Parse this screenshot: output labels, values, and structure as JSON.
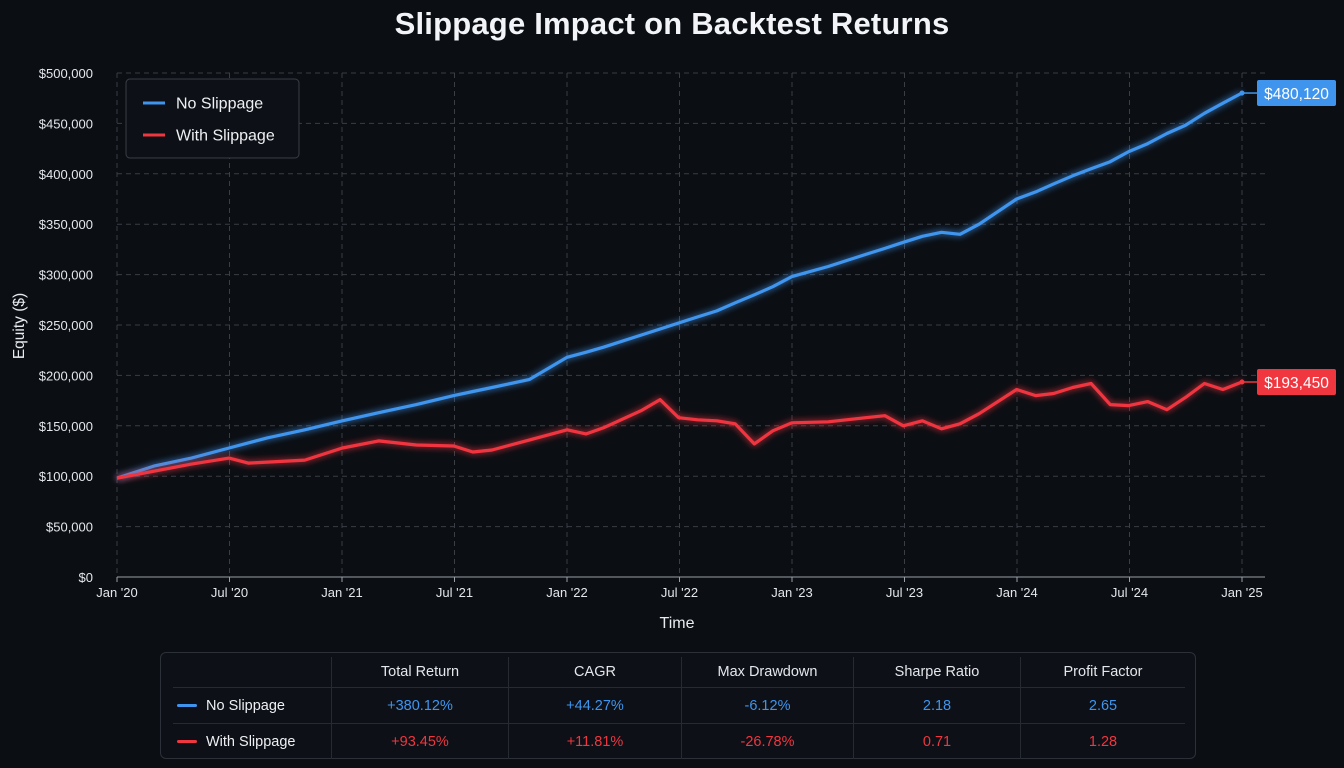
{
  "title": "Slippage Impact on Backtest Returns",
  "colors": {
    "no_slippage": "#3f95ee",
    "with_slippage": "#f0363f",
    "background": "#0b0e13"
  },
  "chart_data": {
    "type": "line",
    "title": "Slippage Impact on Backtest Returns",
    "xlabel": "Time",
    "ylabel": "Equity ($)",
    "x_ticks": [
      "Jan '20",
      "Jul '20",
      "Jan '21",
      "Jul '21",
      "Jan '22",
      "Jul '22",
      "Jan '23",
      "Jul '23",
      "Jan '24",
      "Jul '24",
      "Jan '25"
    ],
    "y_ticks": [
      "$0",
      "$50,000",
      "$100,000",
      "$150,000",
      "$200,000",
      "$250,000",
      "$300,000",
      "$350,000",
      "$400,000",
      "$450,000",
      "$500,000"
    ],
    "ylim": [
      0,
      500000
    ],
    "grid": true,
    "legend_position": "top-left",
    "x": [
      "2020-01",
      "2020-03",
      "2020-05",
      "2020-07",
      "2020-08",
      "2020-09",
      "2020-11",
      "2021-01",
      "2021-03",
      "2021-05",
      "2021-07",
      "2021-08",
      "2021-09",
      "2021-11",
      "2022-01",
      "2022-02",
      "2022-03",
      "2022-05",
      "2022-06",
      "2022-07",
      "2022-08",
      "2022-09",
      "2022-10",
      "2022-11",
      "2022-12",
      "2023-01",
      "2023-03",
      "2023-05",
      "2023-06",
      "2023-07",
      "2023-08",
      "2023-09",
      "2023-10",
      "2023-11",
      "2024-01",
      "2024-02",
      "2024-03",
      "2024-04",
      "2024-05",
      "2024-06",
      "2024-07",
      "2024-08",
      "2024-09",
      "2024-10",
      "2024-11",
      "2024-12",
      "2025-01"
    ],
    "series": [
      {
        "name": "No Slippage",
        "color": "#3f95ee",
        "end_label": "$480,120",
        "values": [
          98000,
          110000,
          118000,
          128000,
          133000,
          138000,
          146000,
          155000,
          163000,
          171000,
          180000,
          184000,
          188000,
          196000,
          218000,
          223000,
          228000,
          240000,
          246000,
          252000,
          258000,
          264000,
          272000,
          280000,
          288000,
          298000,
          308000,
          320000,
          326000,
          332000,
          338000,
          342000,
          340000,
          350000,
          375000,
          382000,
          390000,
          398000,
          405000,
          412000,
          422000,
          430000,
          440000,
          448000,
          460000,
          470000,
          480120
        ]
      },
      {
        "name": "With Slippage",
        "color": "#f0363f",
        "end_label": "$193,450",
        "values": [
          98000,
          105000,
          112000,
          118000,
          113000,
          114000,
          116000,
          128000,
          135000,
          131000,
          130000,
          124000,
          126000,
          136000,
          146000,
          142000,
          148000,
          165000,
          176000,
          158000,
          156000,
          155000,
          152000,
          132000,
          145000,
          153000,
          154000,
          158000,
          160000,
          150000,
          155000,
          147000,
          152000,
          162000,
          186000,
          180000,
          182000,
          188000,
          192000,
          171000,
          170000,
          174000,
          166000,
          178000,
          192000,
          186000,
          193450
        ]
      }
    ]
  },
  "stats_table": {
    "headers": [
      "",
      "Total Return",
      "CAGR",
      "Max Drawdown",
      "Sharpe Ratio",
      "Profit Factor"
    ],
    "rows": [
      {
        "label": "No Slippage",
        "total_return": "+380.12%",
        "cagr": "+44.27%",
        "max_drawdown": "-6.12%",
        "sharpe": "2.18",
        "profit_factor": "2.65"
      },
      {
        "label": "With Slippage",
        "total_return": "+93.45%",
        "cagr": "+11.81%",
        "max_drawdown": "-26.78%",
        "sharpe": "0.71",
        "profit_factor": "1.28"
      }
    ]
  }
}
